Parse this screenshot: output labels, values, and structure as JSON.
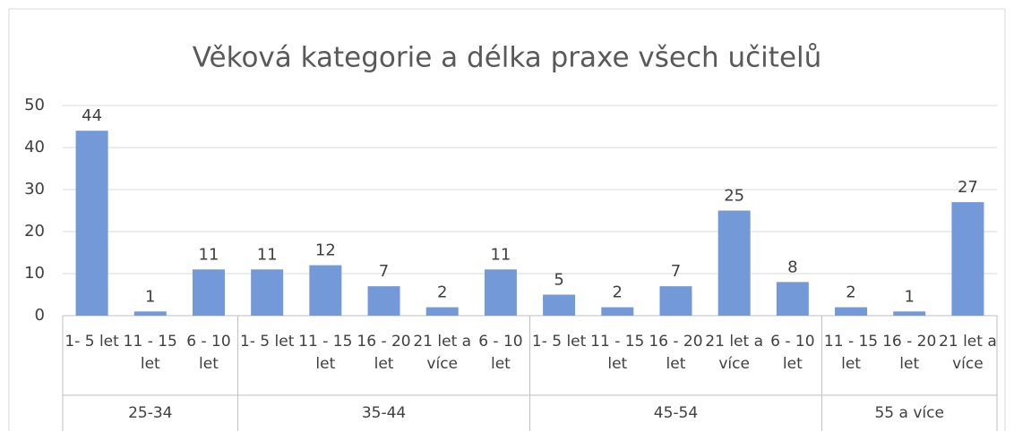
{
  "chart_data": {
    "type": "bar",
    "title": "Věková kategorie a délka praxe všech učitelů",
    "color": "#7399d8",
    "ylim": [
      0,
      50
    ],
    "yticks": [
      0,
      10,
      20,
      30,
      40,
      50
    ],
    "grid": true,
    "groups": [
      {
        "name": "25-34",
        "categories": [
          "1- 5 let",
          "11 - 15 let",
          "6 - 10 let"
        ],
        "values": [
          44,
          1,
          11
        ]
      },
      {
        "name": "35-44",
        "categories": [
          "1- 5 let",
          "11 - 15 let",
          "16 - 20 let",
          "21 let a více",
          "6 - 10 let"
        ],
        "values": [
          11,
          12,
          7,
          2,
          11
        ]
      },
      {
        "name": "45-54",
        "categories": [
          "1- 5 let",
          "11 - 15 let",
          "16 - 20 let",
          "21 let a více",
          "6 - 10 let"
        ],
        "values": [
          5,
          2,
          7,
          25,
          8
        ]
      },
      {
        "name": "55 a více",
        "categories": [
          "11 - 15 let",
          "16 - 20 let",
          "21 let a více"
        ],
        "values": [
          2,
          1,
          27
        ]
      }
    ]
  }
}
